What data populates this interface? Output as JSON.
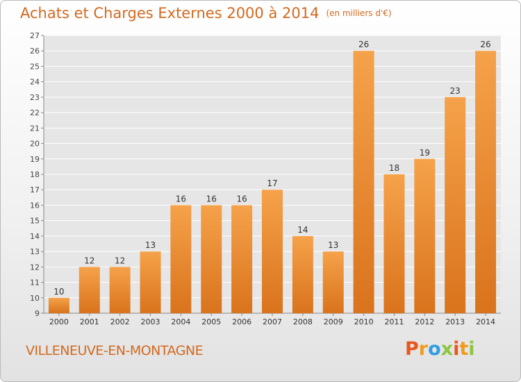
{
  "header": {
    "title": "Achats et Charges Externes 2000 à 2014",
    "unit": "(en milliers d'€)"
  },
  "footer": {
    "commune": "VILLENEUVE-EN-MONTAGNE",
    "logo_text": "Proxiti",
    "logo_letters": [
      "P",
      "r",
      "o",
      "x",
      "i",
      "t",
      "i"
    ],
    "logo_colors": [
      "#e8571e",
      "#f29a1c",
      "#2f9de0",
      "#8cc63f",
      "#e8571e",
      "#f29a1c",
      "#8cc63f"
    ]
  },
  "chart_data": {
    "type": "bar",
    "categories": [
      "2000",
      "2001",
      "2002",
      "2003",
      "2004",
      "2005",
      "2006",
      "2007",
      "2008",
      "2009",
      "2010",
      "2011",
      "2012",
      "2013",
      "2014"
    ],
    "values": [
      10,
      12,
      12,
      13,
      16,
      16,
      16,
      17,
      14,
      13,
      26,
      18,
      19,
      23,
      26
    ],
    "data_labels": [
      "10",
      "12",
      "12",
      "13",
      "16",
      "16",
      "16",
      "17",
      "14",
      "13",
      "26",
      "18",
      "19",
      "23",
      "26"
    ],
    "ylim": [
      9,
      27
    ],
    "yticks": [
      "9",
      "10",
      "11",
      "12",
      "13",
      "14",
      "15",
      "16",
      "17",
      "18",
      "19",
      "20",
      "21",
      "22",
      "23",
      "24",
      "25",
      "26",
      "27"
    ],
    "xlabel": "",
    "ylabel": "",
    "grid": true,
    "bar_color": "#f0952f",
    "title_color": "#d2691e"
  }
}
